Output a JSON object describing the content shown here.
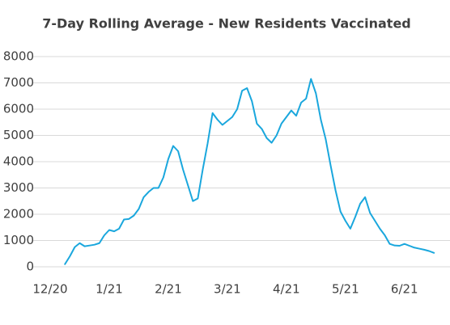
{
  "chart_data": {
    "type": "line",
    "title": "7-Day Rolling Average - New Residents Vaccinated",
    "categories": [
      "12/20",
      null,
      null,
      null,
      null,
      null,
      null,
      null,
      null,
      null,
      null,
      null,
      "1/21",
      null,
      null,
      null,
      null,
      null,
      null,
      null,
      null,
      null,
      null,
      null,
      "2/21",
      null,
      null,
      null,
      null,
      null,
      null,
      null,
      null,
      null,
      null,
      null,
      "3/21",
      null,
      null,
      null,
      null,
      null,
      null,
      null,
      null,
      null,
      null,
      null,
      "4/21",
      null,
      null,
      null,
      null,
      null,
      null,
      null,
      null,
      null,
      null,
      null,
      "5/21",
      null,
      null,
      null,
      null,
      null,
      null,
      null,
      null,
      null,
      null,
      null,
      "6/21",
      null,
      null,
      null,
      null,
      null,
      null
    ],
    "series": [
      {
        "name": "New Residents Vaccinated",
        "color": "#1aa7dd",
        "values": [
          null,
          null,
          null,
          100,
          400,
          750,
          900,
          780,
          810,
          840,
          900,
          1200,
          1400,
          1350,
          1450,
          1800,
          1820,
          1950,
          2200,
          2650,
          2850,
          3000,
          3000,
          3400,
          4100,
          4600,
          4400,
          3700,
          3100,
          2500,
          2600,
          3700,
          4700,
          5850,
          5600,
          5400,
          5550,
          5700,
          6000,
          6700,
          6800,
          6300,
          5450,
          5250,
          4900,
          4720,
          5000,
          5450,
          5700,
          5950,
          5750,
          6250,
          6400,
          7150,
          6600,
          5600,
          4850,
          3850,
          2900,
          2100,
          1750,
          1450,
          1900,
          2400,
          2650,
          2050,
          1750,
          1450,
          1200,
          870,
          810,
          800,
          870,
          800,
          730,
          690,
          650,
          600,
          530
        ]
      }
    ],
    "ylim": [
      0,
      8000
    ],
    "yticks": [
      0,
      1000,
      2000,
      3000,
      4000,
      5000,
      6000,
      7000,
      8000
    ],
    "grid": true
  }
}
